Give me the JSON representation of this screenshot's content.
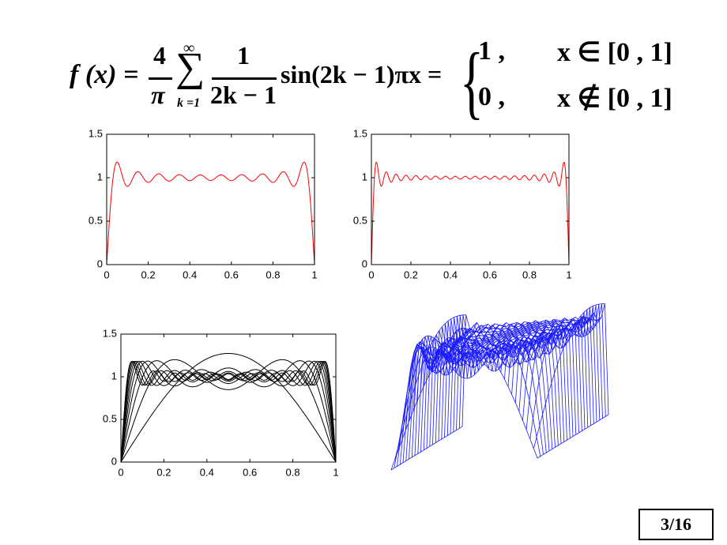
{
  "formula": {
    "lhs": "f (x) =",
    "frac_num": "4",
    "frac_den": "π",
    "sum_top": "∞",
    "sum_bottom": "k =1",
    "term_num": "1",
    "term_den": "2k − 1",
    "term_rest": "sin(2k − 1)πx =",
    "case1_value": "1 ,",
    "case1_cond": "x ∈ [0 , 1]",
    "case2_value": "0 ,",
    "case2_cond": "x ∉ [0 , 1]"
  },
  "chart_data": [
    {
      "type": "line",
      "xlim": [
        0,
        1
      ],
      "ylim": [
        0,
        1.5
      ],
      "xticks": [
        0,
        0.2,
        0.4,
        0.6,
        0.8,
        1
      ],
      "yticks": [
        0,
        0.5,
        1,
        1.5
      ],
      "series": [
        {
          "color": "#ff0000",
          "terms": 10
        }
      ]
    },
    {
      "type": "line",
      "xlim": [
        0,
        1
      ],
      "ylim": [
        0,
        1.5
      ],
      "xticks": [
        0,
        0.2,
        0.4,
        0.6,
        0.8,
        1
      ],
      "yticks": [
        0,
        0.5,
        1,
        1.5
      ],
      "series": [
        {
          "color": "#ff0000",
          "terms": 20
        }
      ]
    },
    {
      "type": "line",
      "xlim": [
        0,
        1
      ],
      "ylim": [
        0,
        1.5
      ],
      "xticks": [
        0,
        0.2,
        0.4,
        0.6,
        0.8,
        1
      ],
      "yticks": [
        0,
        0.5,
        1,
        1.5
      ],
      "series": [
        {
          "color": "#000000",
          "terms": 1
        },
        {
          "color": "#000000",
          "terms": 2
        },
        {
          "color": "#000000",
          "terms": 3
        },
        {
          "color": "#000000",
          "terms": 4
        },
        {
          "color": "#000000",
          "terms": 5
        },
        {
          "color": "#000000",
          "terms": 6
        },
        {
          "color": "#000000",
          "terms": 7
        },
        {
          "color": "#000000",
          "terms": 8
        },
        {
          "color": "#000000",
          "terms": 9
        },
        {
          "color": "#000000",
          "terms": 10
        }
      ]
    }
  ],
  "page_number": "3/16"
}
